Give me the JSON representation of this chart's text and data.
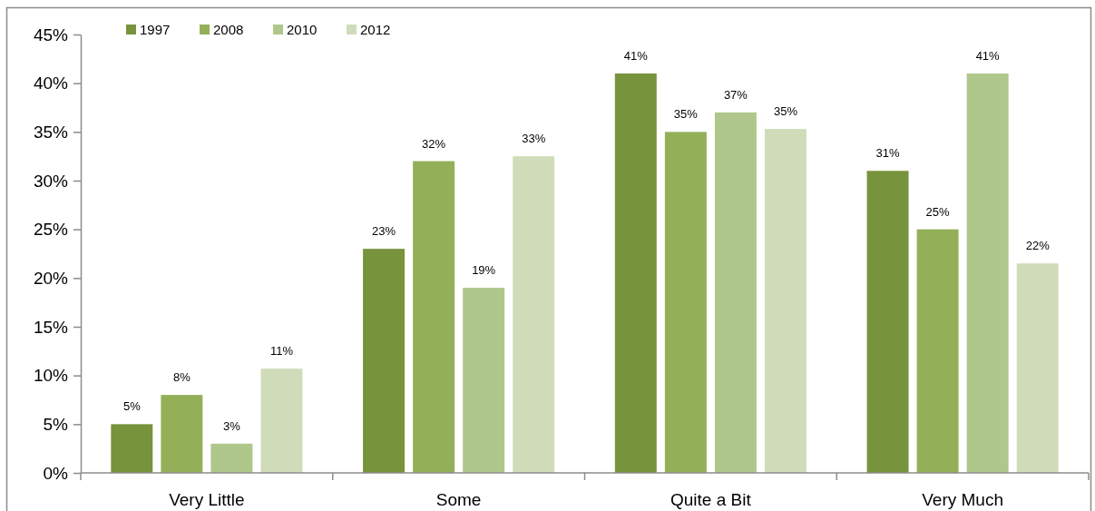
{
  "chart_data": {
    "type": "bar",
    "categories": [
      "Very Little",
      "Some",
      "Quite a Bit",
      "Very Much"
    ],
    "series": [
      {
        "name": "1997",
        "color": "#77933c",
        "values": [
          5,
          23,
          41,
          31
        ],
        "value_labels": [
          "5%",
          "23%",
          "41%",
          "31%"
        ]
      },
      {
        "name": "2008",
        "color": "#93b058",
        "values": [
          8,
          32,
          35,
          25
        ],
        "value_labels": [
          "8%",
          "32%",
          "35%",
          "25%"
        ]
      },
      {
        "name": "2010",
        "color": "#afc78a",
        "values": [
          3,
          19,
          37,
          41
        ],
        "value_labels": [
          "3%",
          "19%",
          "37%",
          "41%"
        ]
      },
      {
        "name": "2012",
        "color": "#d0dcb9",
        "values": [
          10.7,
          32.5,
          35.3,
          21.5
        ],
        "value_labels": [
          "11%",
          "33%",
          "35%",
          "22%"
        ]
      }
    ],
    "ylim": [
      0,
      45
    ],
    "yticks": [
      {
        "value": 0,
        "label": "0%"
      },
      {
        "value": 5,
        "label": "5%"
      },
      {
        "value": 10,
        "label": "10%"
      },
      {
        "value": 15,
        "label": "15%"
      },
      {
        "value": 20,
        "label": "20%"
      },
      {
        "value": 25,
        "label": "25%"
      },
      {
        "value": 30,
        "label": "30%"
      },
      {
        "value": 35,
        "label": "35%"
      },
      {
        "value": 40,
        "label": "40%"
      },
      {
        "value": 45,
        "label": "45%"
      }
    ],
    "grid": false,
    "legend": "top left"
  }
}
